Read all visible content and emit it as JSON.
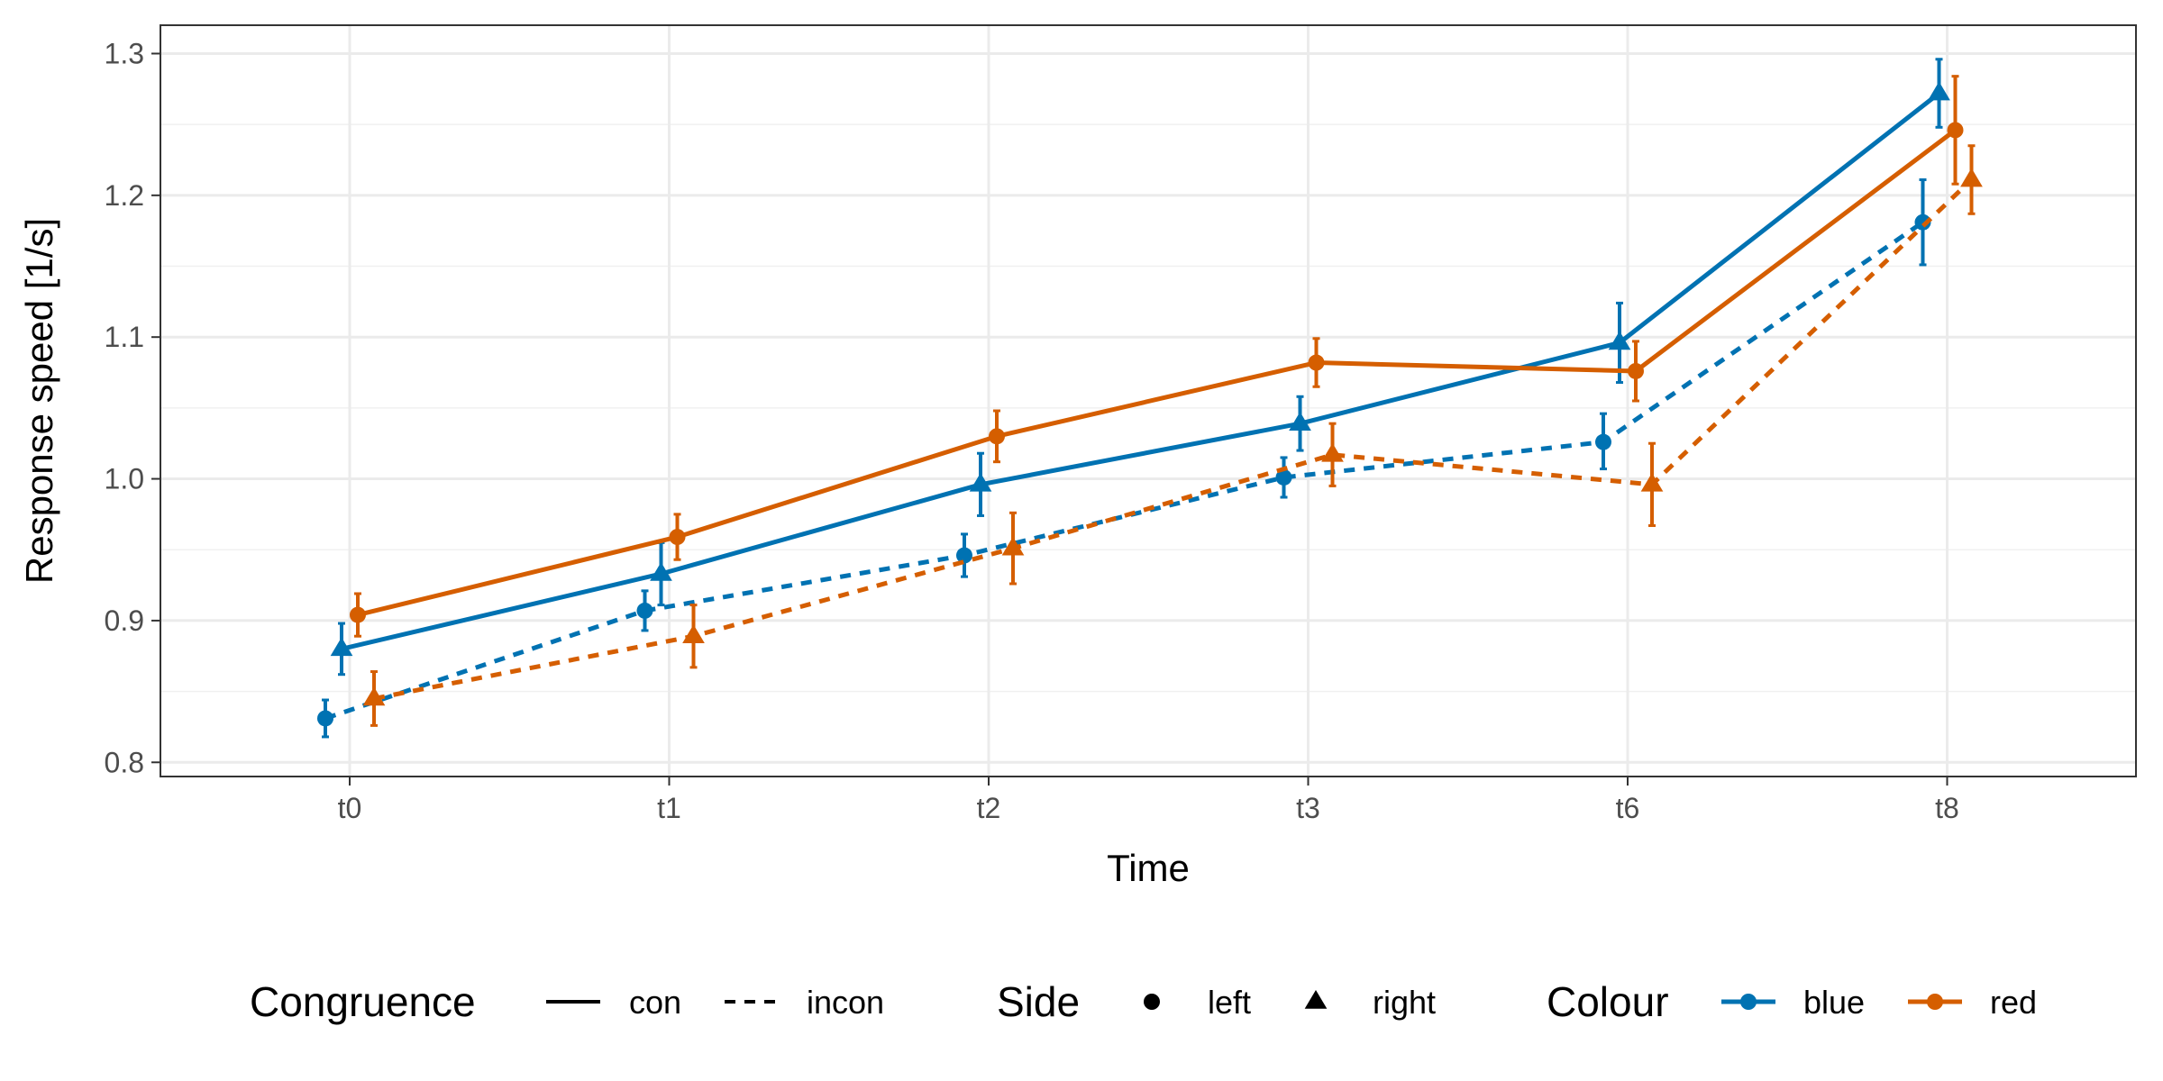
{
  "chart_data": {
    "type": "line",
    "title": "",
    "xlabel": "Time",
    "ylabel": "Response speed [1/s]",
    "categories": [
      "t0",
      "t1",
      "t2",
      "t3",
      "t6",
      "t8"
    ],
    "ylim": [
      0.79,
      1.32
    ],
    "yticks": [
      "0.8",
      "0.9",
      "1.0",
      "1.1",
      "1.2",
      "1.3"
    ],
    "grid": true,
    "error_bars": true,
    "legend": {
      "position": "bottom",
      "groups": [
        {
          "title": "Congruence",
          "entries": [
            "con",
            "incon"
          ]
        },
        {
          "title": "Side",
          "entries": [
            "left",
            "right"
          ]
        },
        {
          "title": "Colour",
          "entries": [
            "blue",
            "red"
          ]
        }
      ]
    },
    "colors": {
      "blue": "#0072B2",
      "red": "#D55E00"
    },
    "series": [
      {
        "colour": "blue",
        "side": "left",
        "congruence": "incon",
        "values": [
          0.831,
          0.907,
          0.946,
          1.001,
          1.026,
          1.181
        ],
        "lower": [
          0.818,
          0.893,
          0.931,
          0.987,
          1.007,
          1.151
        ],
        "upper": [
          0.844,
          0.921,
          0.961,
          1.015,
          1.046,
          1.211
        ]
      },
      {
        "colour": "blue",
        "side": "right",
        "congruence": "con",
        "values": [
          0.88,
          0.933,
          0.996,
          1.039,
          1.096,
          1.272
        ],
        "lower": [
          0.862,
          0.911,
          0.974,
          1.02,
          1.068,
          1.248
        ],
        "upper": [
          0.898,
          0.955,
          1.018,
          1.058,
          1.124,
          1.296
        ]
      },
      {
        "colour": "red",
        "side": "left",
        "congruence": "con",
        "values": [
          0.904,
          0.959,
          1.03,
          1.082,
          1.076,
          1.246
        ],
        "lower": [
          0.889,
          0.943,
          1.012,
          1.065,
          1.055,
          1.208
        ],
        "upper": [
          0.919,
          0.975,
          1.048,
          1.099,
          1.097,
          1.284
        ]
      },
      {
        "colour": "red",
        "side": "right",
        "congruence": "incon",
        "values": [
          0.845,
          0.889,
          0.951,
          1.017,
          0.996,
          1.211
        ],
        "lower": [
          0.826,
          0.867,
          0.926,
          0.995,
          0.967,
          1.187
        ],
        "upper": [
          0.864,
          0.911,
          0.976,
          1.039,
          1.025,
          1.235
        ]
      }
    ]
  }
}
